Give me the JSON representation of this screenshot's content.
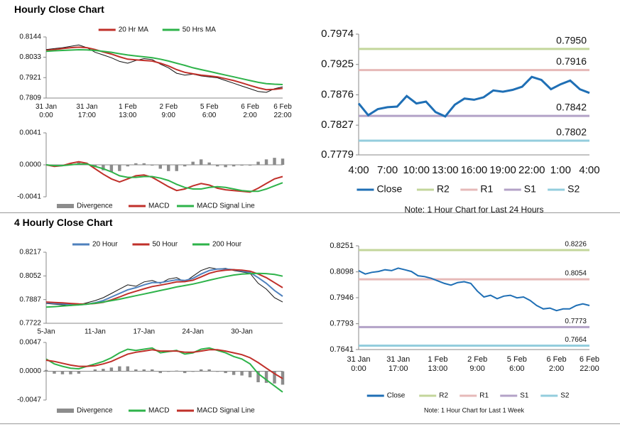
{
  "headings": [
    "Hourly Close Chart",
    "4 Hourly Close Chart"
  ],
  "chart_data": [
    {
      "type": "line",
      "legend": "top",
      "categories": [
        "31 Jan\n0:00",
        null,
        null,
        null,
        null,
        "31 Jan\n17:00",
        null,
        null,
        null,
        null,
        "1 Feb\n13:00",
        null,
        null,
        null,
        null,
        "2 Feb\n9:00",
        null,
        null,
        null,
        null,
        "5 Feb\n6:00",
        null,
        null,
        null,
        null,
        "6 Feb\n2:00",
        null,
        null,
        null,
        "6 Feb\n22:00"
      ],
      "ylim": [
        0.7809,
        0.8144
      ],
      "yticks": [
        0.7809,
        0.7921,
        0.8033,
        0.8144
      ],
      "series": [
        {
          "color": "#111111",
          "values": [
            0.8075,
            0.808,
            0.8085,
            0.8092,
            0.81,
            0.8085,
            0.806,
            0.8045,
            0.803,
            0.801,
            0.8,
            0.8015,
            0.8025,
            0.802,
            0.7995,
            0.7975,
            0.7945,
            0.7935,
            0.794,
            0.793,
            0.7925,
            0.792,
            0.7905,
            0.789,
            0.7875,
            0.786,
            0.7845,
            0.784,
            0.786,
            0.787
          ]
        },
        {
          "name": "20 Hr MA",
          "color": "#c0302a",
          "values": [
            0.807,
            0.8075,
            0.808,
            0.8085,
            0.8088,
            0.8085,
            0.8075,
            0.8062,
            0.805,
            0.8035,
            0.8022,
            0.8018,
            0.8015,
            0.8012,
            0.8,
            0.7985,
            0.7965,
            0.795,
            0.7942,
            0.7935,
            0.793,
            0.7925,
            0.7915,
            0.7905,
            0.7892,
            0.7878,
            0.7865,
            0.7855,
            0.7857,
            0.7862
          ]
        },
        {
          "name": "50 Hrs MA",
          "color": "#2eb34a",
          "values": [
            0.8065,
            0.8068,
            0.807,
            0.8072,
            0.8074,
            0.8073,
            0.807,
            0.8065,
            0.806,
            0.8052,
            0.8045,
            0.804,
            0.8035,
            0.803,
            0.8022,
            0.8012,
            0.8,
            0.7988,
            0.7975,
            0.7965,
            0.7955,
            0.7945,
            0.7935,
            0.7925,
            0.7915,
            0.7905,
            0.7895,
            0.7888,
            0.7885,
            0.7883
          ]
        }
      ]
    },
    {
      "type": "line",
      "legend": "bottom",
      "ylim": [
        -0.0041,
        0.0041
      ],
      "yticks": [
        -0.0041,
        {
          "value": 0,
          "label": "0.0000"
        },
        0.0041
      ],
      "series": [
        {
          "name": "Divergence",
          "type": "bar",
          "color": "#8c8c8c",
          "values": [
            0,
            -0.0001,
            0,
            0.0002,
            0.0003,
            0.0001,
            -0.0003,
            -0.0007,
            -0.0009,
            -0.0008,
            -0.0002,
            0.0002,
            0.0002,
            -0.0001,
            -0.0005,
            -0.0008,
            -0.0008,
            -0.0002,
            0.0004,
            0.0007,
            0.0003,
            -0.0002,
            -0.0003,
            -0.0002,
            -0.0001,
            -0.0001,
            0.0004,
            0.0007,
            0.0009,
            0.0008
          ]
        },
        {
          "name": "MACD",
          "color": "#c0302a",
          "values": [
            0,
            -0.0002,
            -0.0001,
            0.0002,
            0.0004,
            0.0002,
            -0.0005,
            -0.0012,
            -0.0018,
            -0.0022,
            -0.0018,
            -0.0014,
            -0.0013,
            -0.0016,
            -0.0022,
            -0.0028,
            -0.0033,
            -0.0031,
            -0.0027,
            -0.0024,
            -0.0026,
            -0.003,
            -0.0032,
            -0.0033,
            -0.0034,
            -0.0035,
            -0.003,
            -0.0024,
            -0.0018,
            -0.0015
          ]
        },
        {
          "name": "MACD Signal Line",
          "color": "#2eb34a",
          "values": [
            0,
            -0.0001,
            -0.0001,
            0,
            0.0001,
            0.0001,
            -0.0002,
            -0.0005,
            -0.0009,
            -0.0014,
            -0.0016,
            -0.0016,
            -0.0015,
            -0.0015,
            -0.0017,
            -0.002,
            -0.0025,
            -0.0029,
            -0.0031,
            -0.0031,
            -0.0029,
            -0.0028,
            -0.0029,
            -0.0031,
            -0.0033,
            -0.0034,
            -0.0034,
            -0.0031,
            -0.0027,
            -0.0023
          ]
        }
      ]
    },
    {
      "type": "line",
      "legend": "bottom",
      "note": "Note: 1 Hour Chart for Last 24 Hours",
      "categories": [
        "4:00",
        null,
        null,
        "7:00",
        null,
        null,
        "10:00",
        null,
        null,
        "13:00",
        null,
        null,
        "16:00",
        null,
        null,
        "19:00",
        null,
        null,
        "22:00",
        null,
        null,
        "1:00",
        null,
        null,
        "4:00"
      ],
      "ylim": [
        0.7779,
        0.7974
      ],
      "yticks": [
        0.7779,
        0.7827,
        0.7876,
        0.7925,
        0.7974
      ],
      "series": [
        {
          "name": "Close",
          "color": "#1f6fb5",
          "values": [
            0.7862,
            0.7843,
            0.7853,
            0.7856,
            0.7857,
            0.7874,
            0.7862,
            0.7865,
            0.7848,
            0.7841,
            0.786,
            0.787,
            0.7868,
            0.7872,
            0.7883,
            0.7881,
            0.7884,
            0.7889,
            0.7905,
            0.79,
            0.7885,
            0.7893,
            0.7899,
            0.7885,
            0.7879
          ]
        }
      ],
      "levels": [
        {
          "name": "R2",
          "value": 0.795,
          "value_label": "0.7950",
          "color": "#c3d69b"
        },
        {
          "name": "R1",
          "value": 0.7916,
          "color": "#e6b9b8"
        },
        {
          "name": "S1",
          "value": 0.7842,
          "color": "#b3a2c7"
        },
        {
          "name": "S2",
          "value": 0.7802,
          "color": "#93cddd"
        }
      ]
    },
    {
      "type": "line",
      "legend": "top",
      "categories": [
        "5-Jan",
        null,
        null,
        null,
        null,
        null,
        "11-Jan",
        null,
        null,
        null,
        null,
        null,
        "17-Jan",
        null,
        null,
        null,
        null,
        null,
        "24-Jan",
        null,
        null,
        null,
        null,
        null,
        "30-Jan",
        null,
        null,
        null,
        null,
        null
      ],
      "ylim": [
        0.7722,
        0.8217
      ],
      "yticks": [
        0.7722,
        0.7887,
        0.8052,
        0.8217
      ],
      "series": [
        {
          "color": "#111111",
          "values": [
            0.786,
            0.7855,
            0.785,
            0.7845,
            0.785,
            0.7865,
            0.788,
            0.79,
            0.793,
            0.796,
            0.799,
            0.798,
            0.801,
            0.802,
            0.8,
            0.803,
            0.804,
            0.801,
            0.805,
            0.809,
            0.811,
            0.81,
            0.8105,
            0.809,
            0.808,
            0.807,
            0.8,
            0.796,
            0.79,
            0.787
          ]
        },
        {
          "name": "20 Hour",
          "color": "#4f81bd",
          "values": [
            0.7865,
            0.786,
            0.7857,
            0.7852,
            0.785,
            0.7855,
            0.7865,
            0.788,
            0.7905,
            0.793,
            0.7955,
            0.797,
            0.799,
            0.8005,
            0.8005,
            0.8015,
            0.8025,
            0.802,
            0.8035,
            0.8065,
            0.809,
            0.81,
            0.81,
            0.8095,
            0.8085,
            0.8075,
            0.804,
            0.8,
            0.795,
            0.791
          ]
        },
        {
          "name": "50 Hour",
          "color": "#c0302a",
          "values": [
            0.787,
            0.7867,
            0.7864,
            0.786,
            0.7857,
            0.7856,
            0.786,
            0.7868,
            0.7885,
            0.7905,
            0.7928,
            0.7945,
            0.7962,
            0.7978,
            0.7988,
            0.7998,
            0.801,
            0.8012,
            0.8022,
            0.8045,
            0.807,
            0.8085,
            0.8092,
            0.8095,
            0.8092,
            0.8085,
            0.8065,
            0.804,
            0.8005,
            0.797
          ]
        },
        {
          "name": "200 Hour",
          "color": "#2eb34a",
          "values": [
            0.7835,
            0.7838,
            0.7842,
            0.7846,
            0.785,
            0.7855,
            0.7862,
            0.787,
            0.788,
            0.789,
            0.7902,
            0.7914,
            0.7926,
            0.7938,
            0.795,
            0.7962,
            0.7975,
            0.7985,
            0.7995,
            0.8008,
            0.8022,
            0.8035,
            0.8047,
            0.8058,
            0.8065,
            0.8068,
            0.807,
            0.8068,
            0.8062,
            0.805
          ]
        }
      ]
    },
    {
      "type": "line",
      "legend": "bottom",
      "ylim": [
        -0.0047,
        0.0047
      ],
      "yticks": [
        -0.0047,
        {
          "value": 0,
          "label": "0.0000"
        },
        0.0047
      ],
      "series": [
        {
          "name": "Divergence",
          "type": "bar",
          "color": "#8c8c8c",
          "values": [
            0.0002,
            -0.0004,
            -0.0005,
            -0.0005,
            -0.0004,
            0,
            0.0003,
            0.0004,
            0.0006,
            0.0008,
            0.0008,
            0.0003,
            0.0003,
            0.0003,
            -0.0003,
            -0.0001,
            0.0001,
            -0.0003,
            -0.0001,
            0.0003,
            0.0003,
            -0.0001,
            -0.0003,
            -0.0006,
            -0.0007,
            -0.001,
            -0.0018,
            -0.0019,
            -0.002,
            -0.0022
          ]
        },
        {
          "name": "MACD",
          "color": "#2eb34a",
          "values": [
            0.002,
            0.0012,
            0.0008,
            0.0005,
            0.0004,
            0.0008,
            0.0012,
            0.0016,
            0.0022,
            0.003,
            0.0036,
            0.0034,
            0.0036,
            0.0038,
            0.003,
            0.0032,
            0.0034,
            0.0028,
            0.003,
            0.0036,
            0.0038,
            0.0034,
            0.003,
            0.0024,
            0.002,
            0.0012,
            -0.0004,
            -0.0014,
            -0.0024,
            -0.0034
          ]
        },
        {
          "name": "MACD Signal Line",
          "color": "#c0302a",
          "values": [
            0.0018,
            0.0016,
            0.0013,
            0.001,
            0.0008,
            0.0008,
            0.0009,
            0.0012,
            0.0016,
            0.0022,
            0.0028,
            0.0031,
            0.0033,
            0.0035,
            0.0033,
            0.0033,
            0.0033,
            0.0031,
            0.0031,
            0.0033,
            0.0035,
            0.0035,
            0.0033,
            0.003,
            0.0027,
            0.0022,
            0.0014,
            0.0005,
            -0.0004,
            -0.0012
          ]
        }
      ]
    },
    {
      "type": "line",
      "legend": "bottom",
      "note": "Note: 1 Hour Chart for Last 1 Week",
      "categories": [
        "31 Jan\n0:00",
        null,
        null,
        null,
        null,
        null,
        "31 Jan\n17:00",
        null,
        null,
        null,
        null,
        null,
        "1 Feb\n13:00",
        null,
        null,
        null,
        null,
        null,
        "2 Feb\n9:00",
        null,
        null,
        null,
        null,
        null,
        "5 Feb\n6:00",
        null,
        null,
        null,
        null,
        null,
        "6 Feb\n2:00",
        null,
        null,
        null,
        null,
        "6 Feb\n22:00"
      ],
      "ylim": [
        0.7641,
        0.8251
      ],
      "yticks": [
        0.7641,
        0.7793,
        0.7946,
        0.8098,
        0.8251
      ],
      "series": [
        {
          "name": "Close",
          "color": "#1f6fb5",
          "values": [
            0.8105,
            0.8085,
            0.8095,
            0.81,
            0.811,
            0.8105,
            0.812,
            0.811,
            0.81,
            0.8075,
            0.807,
            0.806,
            0.8045,
            0.803,
            0.802,
            0.8035,
            0.804,
            0.803,
            0.7985,
            0.795,
            0.796,
            0.794,
            0.7955,
            0.796,
            0.7945,
            0.795,
            0.793,
            0.79,
            0.788,
            0.7885,
            0.787,
            0.788,
            0.788,
            0.79,
            0.791,
            0.79
          ]
        }
      ],
      "levels": [
        {
          "name": "R2",
          "value": 0.8226,
          "color": "#c3d69b"
        },
        {
          "name": "R1",
          "value": 0.8054,
          "color": "#e6b9b8"
        },
        {
          "name": "S1",
          "value": 0.7773,
          "color": "#b3a2c7"
        },
        {
          "name": "S2",
          "value": 0.7664,
          "color": "#93cddd"
        }
      ]
    }
  ]
}
